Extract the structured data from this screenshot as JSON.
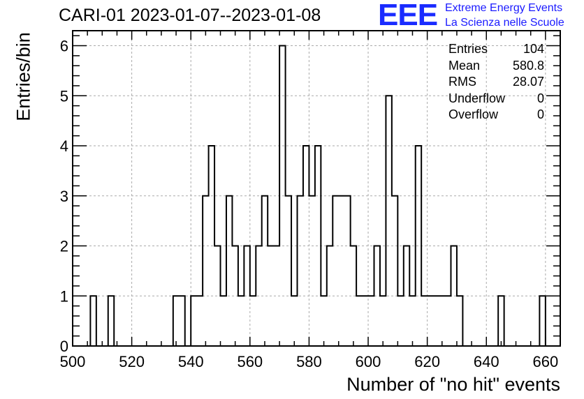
{
  "chart_data": {
    "type": "bar",
    "title": "CARI-01 2023-01-07--2023-01-08",
    "xlabel": "Number of \"no hit\" events",
    "ylabel": "Entries/bin",
    "xlim": [
      500,
      665
    ],
    "ylim": [
      0,
      6.3
    ],
    "bin_width": 2,
    "grid": true,
    "x_ticks": [
      500,
      520,
      540,
      560,
      580,
      600,
      620,
      640,
      660
    ],
    "y_ticks": [
      0,
      1,
      2,
      3,
      4,
      5,
      6
    ],
    "bins": [
      {
        "x": 506,
        "y": 1
      },
      {
        "x": 512,
        "y": 1
      },
      {
        "x": 534,
        "y": 1
      },
      {
        "x": 536,
        "y": 1
      },
      {
        "x": 540,
        "y": 1
      },
      {
        "x": 542,
        "y": 1
      },
      {
        "x": 544,
        "y": 3
      },
      {
        "x": 546,
        "y": 4
      },
      {
        "x": 548,
        "y": 2
      },
      {
        "x": 550,
        "y": 1
      },
      {
        "x": 552,
        "y": 3
      },
      {
        "x": 554,
        "y": 2
      },
      {
        "x": 556,
        "y": 1
      },
      {
        "x": 558,
        "y": 2
      },
      {
        "x": 560,
        "y": 1
      },
      {
        "x": 562,
        "y": 2
      },
      {
        "x": 564,
        "y": 3
      },
      {
        "x": 566,
        "y": 2
      },
      {
        "x": 568,
        "y": 2
      },
      {
        "x": 570,
        "y": 6
      },
      {
        "x": 572,
        "y": 3
      },
      {
        "x": 574,
        "y": 1
      },
      {
        "x": 576,
        "y": 3
      },
      {
        "x": 578,
        "y": 4
      },
      {
        "x": 580,
        "y": 3
      },
      {
        "x": 582,
        "y": 4
      },
      {
        "x": 584,
        "y": 1
      },
      {
        "x": 586,
        "y": 2
      },
      {
        "x": 588,
        "y": 3
      },
      {
        "x": 590,
        "y": 3
      },
      {
        "x": 592,
        "y": 3
      },
      {
        "x": 594,
        "y": 2
      },
      {
        "x": 596,
        "y": 1
      },
      {
        "x": 598,
        "y": 1
      },
      {
        "x": 600,
        "y": 1
      },
      {
        "x": 602,
        "y": 2
      },
      {
        "x": 604,
        "y": 1
      },
      {
        "x": 606,
        "y": 5
      },
      {
        "x": 608,
        "y": 3
      },
      {
        "x": 610,
        "y": 1
      },
      {
        "x": 612,
        "y": 2
      },
      {
        "x": 614,
        "y": 1
      },
      {
        "x": 616,
        "y": 4
      },
      {
        "x": 618,
        "y": 1
      },
      {
        "x": 620,
        "y": 1
      },
      {
        "x": 622,
        "y": 1
      },
      {
        "x": 624,
        "y": 1
      },
      {
        "x": 626,
        "y": 1
      },
      {
        "x": 628,
        "y": 2
      },
      {
        "x": 630,
        "y": 1
      },
      {
        "x": 644,
        "y": 1
      },
      {
        "x": 658,
        "y": 1
      }
    ],
    "stats": [
      {
        "label": "Entries",
        "value": "104"
      },
      {
        "label": "Mean",
        "value": "580.8"
      },
      {
        "label": "RMS",
        "value": "28.07"
      },
      {
        "label": "Underflow",
        "value": "0"
      },
      {
        "label": "Overflow",
        "value": "0"
      }
    ],
    "line_color": "#000000",
    "grid_color": "#aaaaaa"
  },
  "logo": {
    "mark": "EEE",
    "line1": "Extreme Energy Events",
    "line2": "La Scienza nelle Scuole",
    "color": "#1a2bff"
  }
}
